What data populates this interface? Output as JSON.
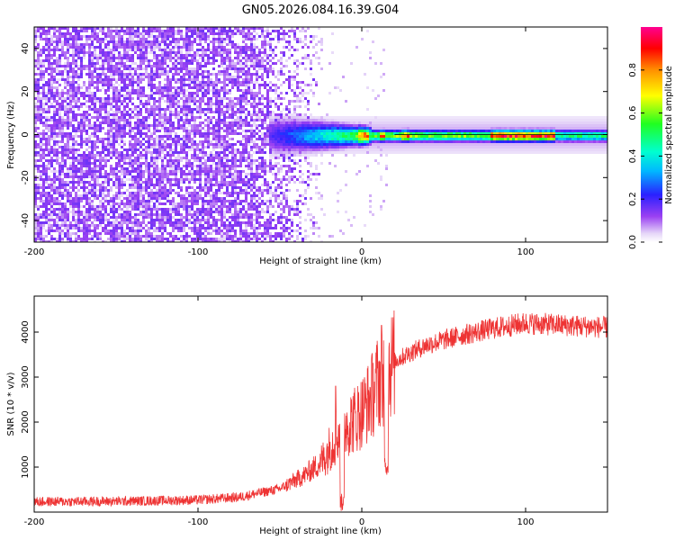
{
  "title": "GN05.2026.084.16.39.G04",
  "chart_data": [
    {
      "type": "heatmap",
      "name": "spectrogram",
      "xlabel": "Height of straight line (km)",
      "ylabel": "Frequency (Hz)",
      "xlim": [
        -200,
        150
      ],
      "ylim": [
        -50,
        50
      ],
      "xticks": [
        "-200",
        "-100",
        "0",
        "100"
      ],
      "xtick_values": [
        -200,
        -100,
        0,
        100
      ],
      "yticks": [
        "-40",
        "-20",
        "0",
        "20",
        "40"
      ],
      "ytick_values": [
        -40,
        -20,
        0,
        20,
        40
      ],
      "colorbar": {
        "label": "Normalized spectral amplitude",
        "range": [
          0,
          1
        ],
        "ticks": [
          "0.0",
          "0.2",
          "0.4",
          "0.6",
          "0.8"
        ],
        "tick_values": [
          0.0,
          0.2,
          0.4,
          0.6,
          0.8
        ]
      },
      "description_points": {
        "noise_region_x": [
          -200,
          -30
        ],
        "signal_center_frequency_hz": 0,
        "signal_start_x": -55,
        "peak_amplitude_x_range": [
          78,
          118
        ],
        "peak_amplitude": 0.9
      }
    },
    {
      "type": "line",
      "name": "snr",
      "xlabel": "Height of straight line (km)",
      "ylabel": "SNR (10 * v/v)",
      "xlim": [
        -200,
        150
      ],
      "ylim": [
        0,
        4800
      ],
      "xticks": [
        "-200",
        "-100",
        "0",
        "100"
      ],
      "xtick_values": [
        -200,
        -100,
        0,
        100
      ],
      "yticks": [
        "1000",
        "2000",
        "3000",
        "4000"
      ],
      "ytick_values": [
        1000,
        2000,
        3000,
        4000
      ],
      "color": "#ee3333",
      "envelope": {
        "x": [
          -200,
          -150,
          -100,
          -75,
          -50,
          -35,
          -25,
          -18,
          -12,
          -5,
          0,
          5,
          10,
          15,
          20,
          30,
          40,
          60,
          80,
          100,
          120,
          150
        ],
        "y": [
          230,
          240,
          270,
          330,
          520,
          820,
          1100,
          1520,
          1900,
          2050,
          2230,
          2500,
          2900,
          3150,
          3350,
          3550,
          3720,
          3920,
          4080,
          4200,
          4160,
          4100
        ]
      },
      "dips": [
        {
          "x": -12,
          "y": 10
        },
        {
          "x": 15,
          "y": 800
        }
      ],
      "spikes": [
        {
          "x": 12,
          "y": 4150
        },
        {
          "x": -16,
          "y": 2800
        }
      ]
    }
  ]
}
